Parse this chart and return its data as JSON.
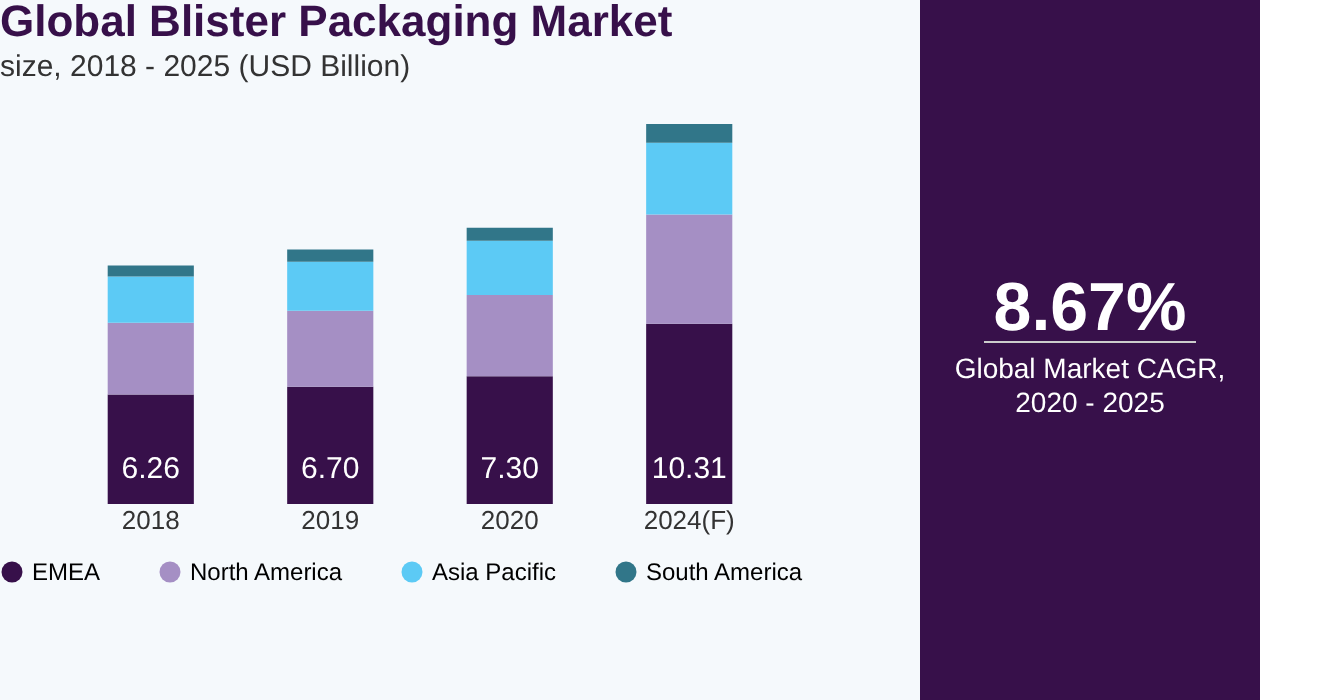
{
  "chart_data": [
    {
      "type": "bar",
      "title": "Global Blister Packaging Market",
      "subtitle": "size, 2018 - 2025 (USD Billion)",
      "categories": [
        "2018",
        "2019",
        "2020",
        "2024(F)"
      ],
      "stacked": true,
      "tick_labels": "x",
      "legend": "bottom",
      "series": [
        {
          "name": "EMEA",
          "color": "#37104a",
          "values": [
            6.26,
            6.7,
            7.3,
            10.31
          ],
          "value_labels": [
            "6.26",
            "6.70",
            "7.30",
            "10.31"
          ]
        },
        {
          "name": "North America",
          "color": "#a58fc4",
          "values": [
            4.1,
            4.35,
            4.65,
            6.25
          ]
        },
        {
          "name": "Asia Pacific",
          "color": "#5ccaf5",
          "values": [
            2.65,
            2.8,
            3.1,
            4.1
          ]
        },
        {
          "name": "South America",
          "color": "#317689",
          "values": [
            0.63,
            0.7,
            0.74,
            1.07
          ]
        }
      ]
    },
    {
      "type": "other",
      "annotations": [
        "8.67%",
        "Global Market CAGR,",
        "2020 - 2025"
      ]
    }
  ]
}
